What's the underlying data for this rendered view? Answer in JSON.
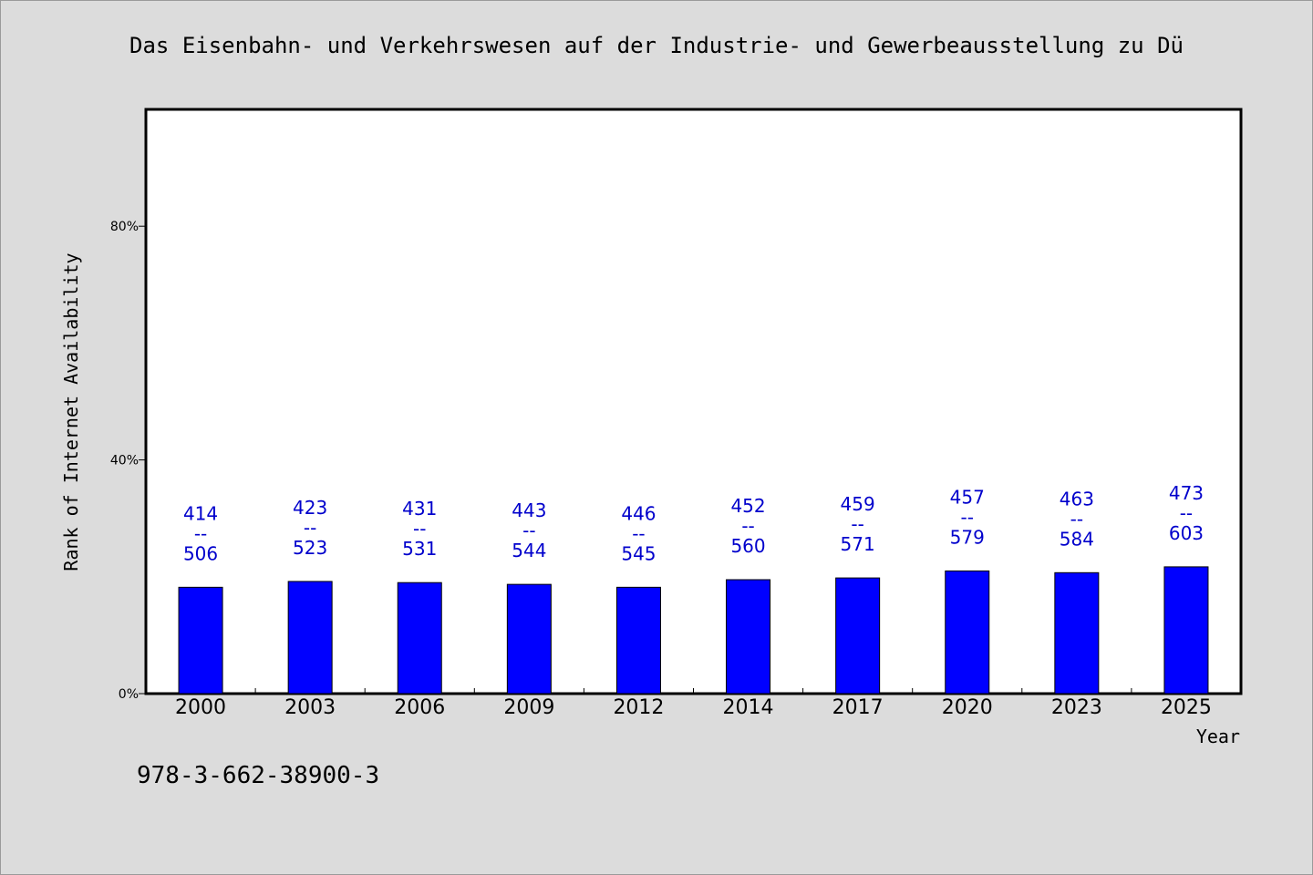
{
  "chart_data": {
    "type": "bar",
    "title": "Das Eisenbahn- und Verkehrswesen auf der Industrie- und Gewerbeausstellung zu Dü",
    "ylabel": "Rank of Internet Availability",
    "xlabel": "Year",
    "categories": [
      "2000",
      "2003",
      "2006",
      "2009",
      "2012",
      "2014",
      "2017",
      "2020",
      "2023",
      "2025"
    ],
    "values": [
      18.2,
      19.2,
      19.0,
      18.7,
      18.2,
      19.5,
      19.8,
      21.0,
      20.7,
      21.7
    ],
    "data_labels": [
      [
        "414",
        "--",
        "506"
      ],
      [
        "423",
        "--",
        "523"
      ],
      [
        "431",
        "--",
        "531"
      ],
      [
        "443",
        "--",
        "544"
      ],
      [
        "446",
        "--",
        "545"
      ],
      [
        "452",
        "--",
        "560"
      ],
      [
        "459",
        "--",
        "571"
      ],
      [
        "457",
        "--",
        "579"
      ],
      [
        "463",
        "--",
        "584"
      ],
      [
        "473",
        "--",
        "603"
      ]
    ],
    "yticks": [
      0,
      40,
      80
    ],
    "ytick_labels": [
      "0%",
      "40%",
      "80%"
    ],
    "ylim": [
      0,
      100
    ],
    "grid": false,
    "colors": {
      "bar": "#0000ff",
      "label": "#0000cc"
    }
  },
  "footer": {
    "code": "978-3-662-38900-3"
  }
}
